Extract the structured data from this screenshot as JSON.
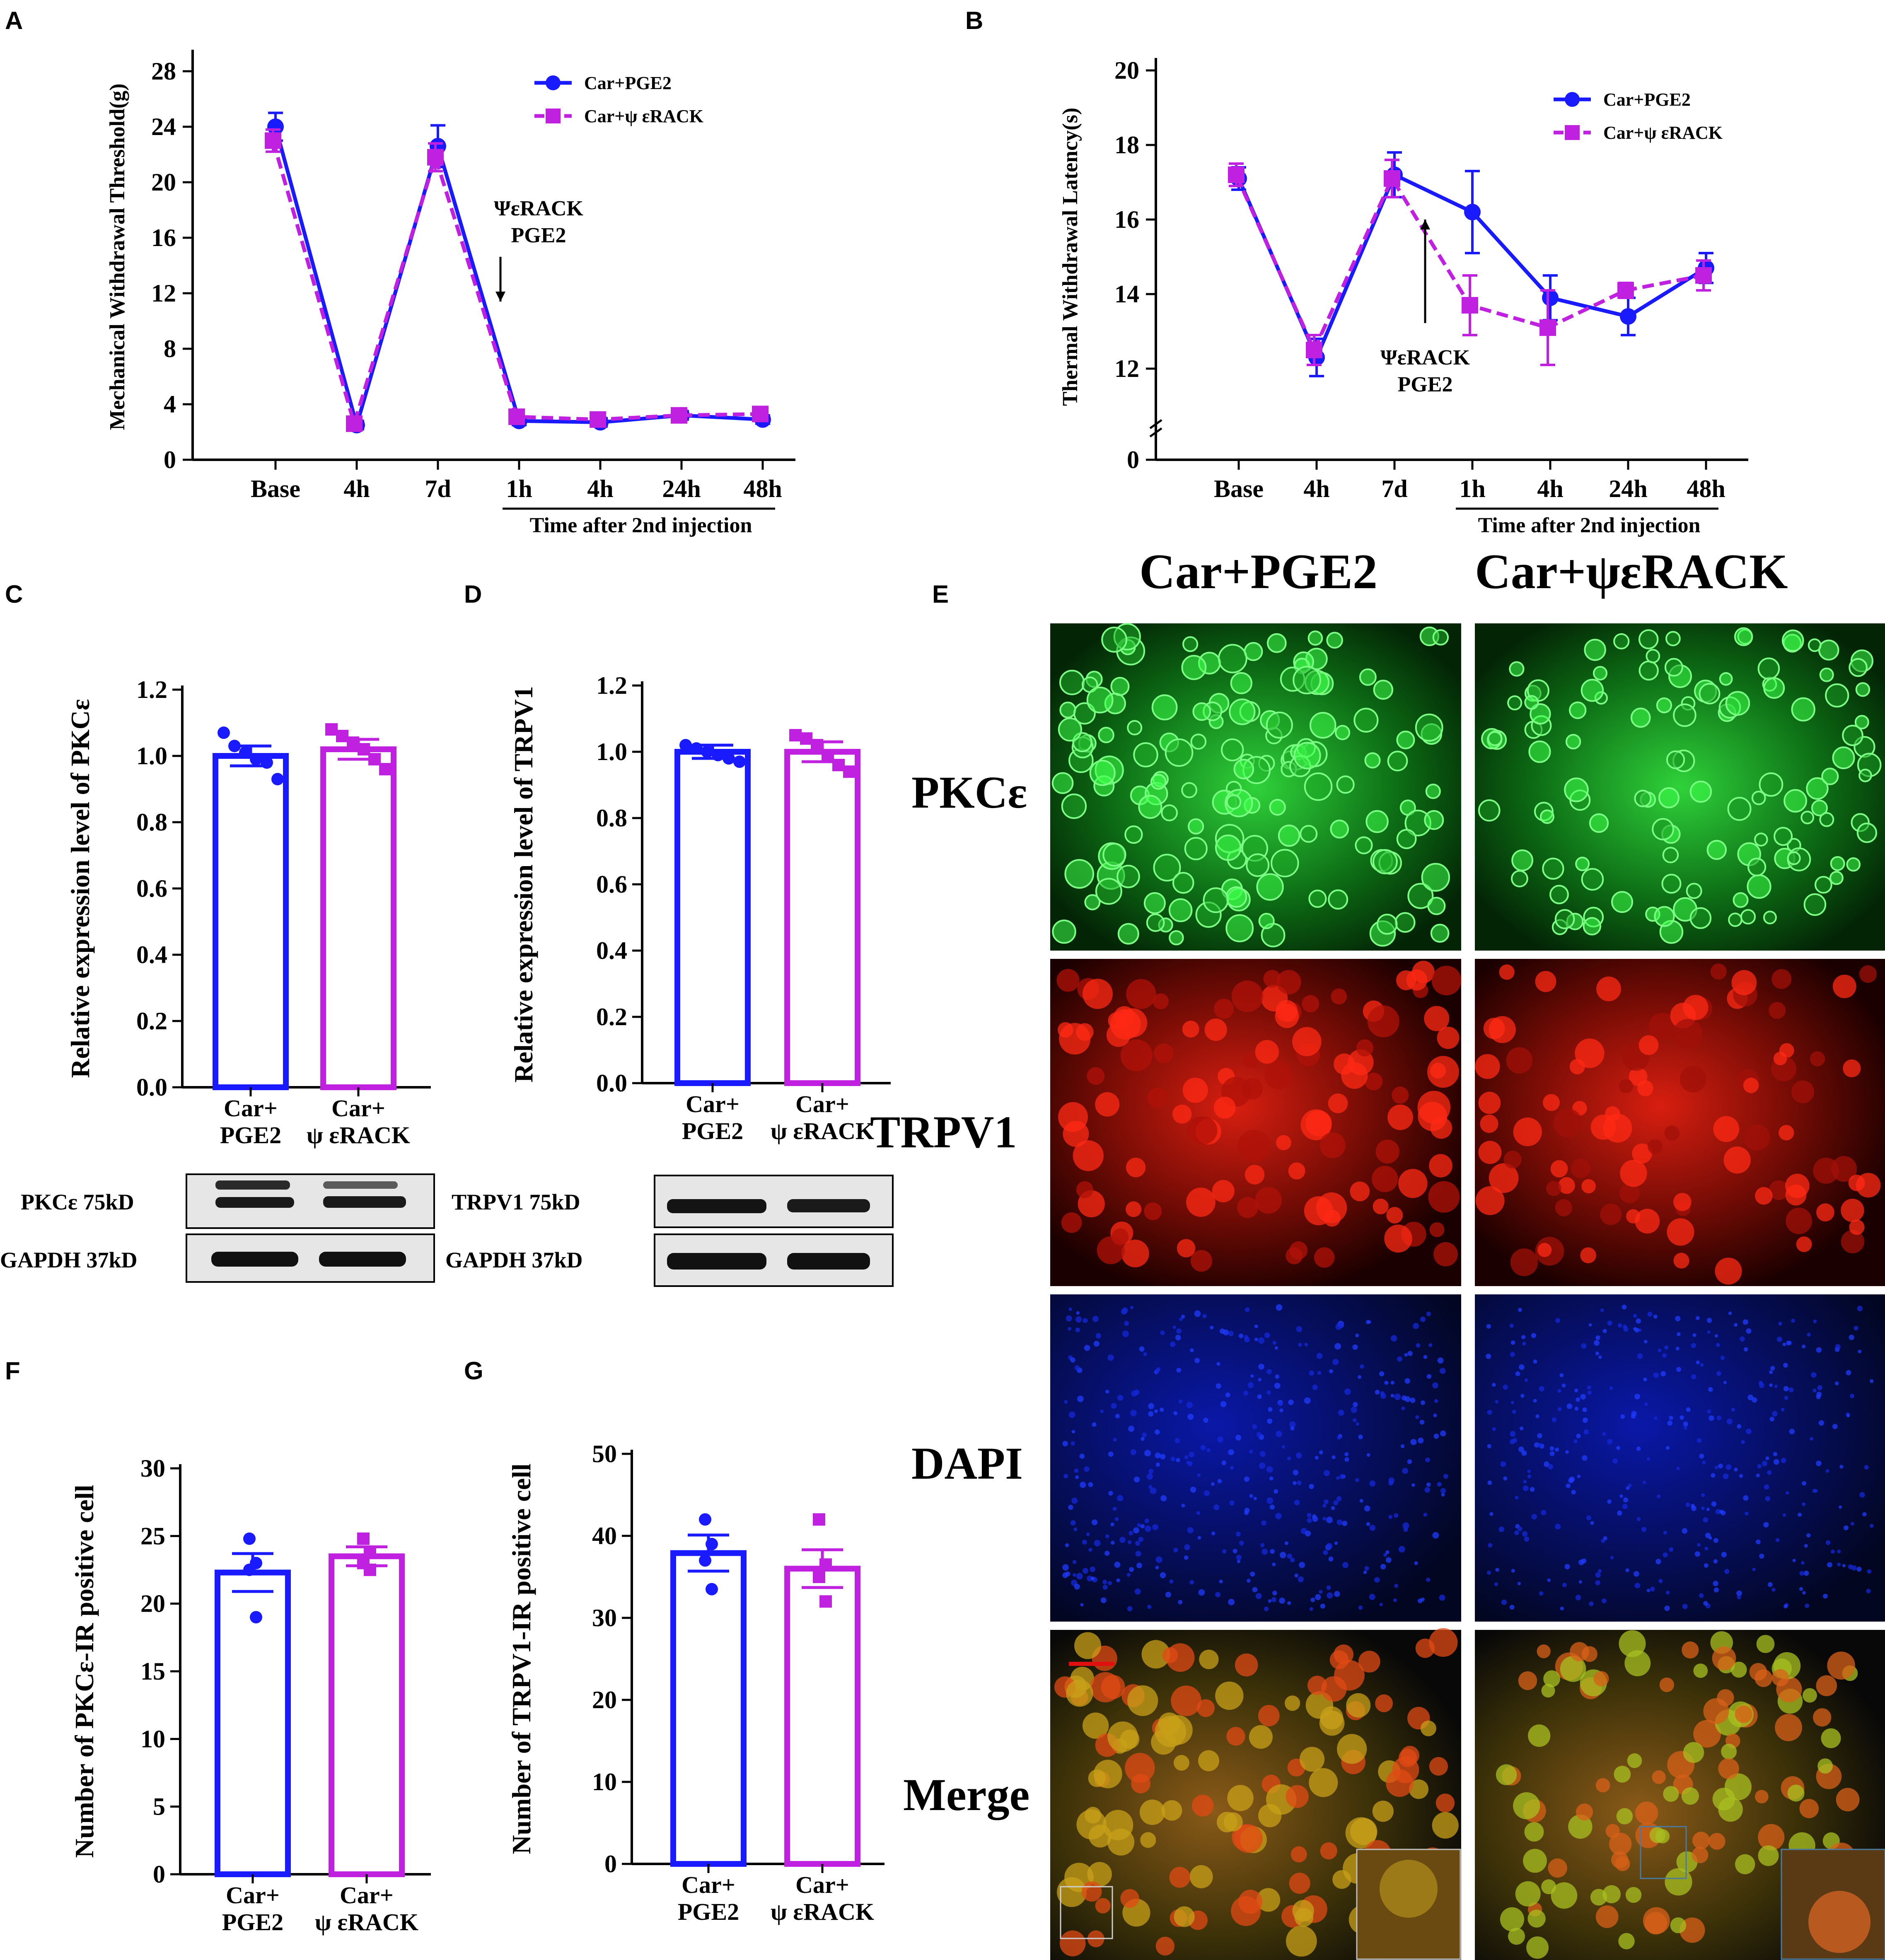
{
  "colors": {
    "blue": "#1a1aff",
    "purple": "#c020e0",
    "black": "#000000"
  },
  "panels": {
    "A": "A",
    "B": "B",
    "C": "C",
    "D": "D",
    "E": "E",
    "F": "F",
    "G": "G"
  },
  "chart_data": [
    {
      "id": "A",
      "type": "line",
      "ylabel": "Mechanical Withdrawal Threshold(g)",
      "categories": [
        "Base",
        "4h",
        "7d",
        "1h",
        "4h",
        "24h",
        "48h"
      ],
      "x_group_label": "Time after 2nd injection",
      "yticks": [
        0,
        4,
        8,
        12,
        16,
        20,
        24,
        28
      ],
      "ylim": [
        0,
        30
      ],
      "annotation": [
        "ΨεRACK",
        "PGE2"
      ],
      "legend_position": "top-right",
      "series": [
        {
          "name": "Car+PGE2",
          "values": [
            24.0,
            2.5,
            22.6,
            2.8,
            2.7,
            3.2,
            2.9
          ],
          "errors": [
            1.0,
            0.3,
            1.5,
            0.3,
            0.3,
            0.3,
            0.3
          ],
          "color": "#1a1aff",
          "marker": "circle",
          "dash": "solid"
        },
        {
          "name": "Car+ψ εRACK",
          "values": [
            23.0,
            2.6,
            21.8,
            3.1,
            2.9,
            3.2,
            3.3
          ],
          "errors": [
            0.8,
            0.3,
            1.0,
            0.3,
            0.3,
            0.3,
            0.3
          ],
          "color": "#c020e0",
          "marker": "square",
          "dash": "dashed"
        }
      ]
    },
    {
      "id": "B",
      "type": "line",
      "ylabel": "Thermal Withdrawal Latency(s)",
      "categories": [
        "Base",
        "4h",
        "7d",
        "1h",
        "4h",
        "24h",
        "48h"
      ],
      "x_group_label": "Time after 2nd injection",
      "yticks": [
        0,
        12,
        14,
        16,
        18,
        20
      ],
      "ylim": [
        11,
        20
      ],
      "axis_break": true,
      "annotation": [
        "ΨεRACK",
        "PGE2"
      ],
      "legend_position": "top-right",
      "series": [
        {
          "name": "Car+PGE2",
          "values": [
            17.1,
            12.3,
            17.2,
            16.2,
            13.9,
            13.4,
            14.7
          ],
          "errors": [
            0.3,
            0.5,
            0.6,
            1.1,
            0.6,
            0.5,
            0.4
          ],
          "color": "#1a1aff",
          "marker": "circle",
          "dash": "solid"
        },
        {
          "name": "Car+ψ εRACK",
          "values": [
            17.2,
            12.5,
            17.1,
            13.7,
            13.1,
            14.1,
            14.5
          ],
          "errors": [
            0.3,
            0.4,
            0.5,
            0.8,
            1.0,
            0.2,
            0.4
          ],
          "color": "#c020e0",
          "marker": "square",
          "dash": "dashed"
        }
      ]
    },
    {
      "id": "C",
      "type": "bar",
      "ylabel": "Relative expression level of PKCε",
      "yticks": [
        "0.0",
        "0.2",
        "0.4",
        "0.6",
        "0.8",
        "1.0",
        "1.2"
      ],
      "ylim": [
        0,
        1.2
      ],
      "categories": [
        [
          "Car+",
          "PGE2"
        ],
        [
          "Car+",
          "ψ εRACK"
        ]
      ],
      "values": [
        1.0,
        1.02
      ],
      "errors": [
        0.03,
        0.03
      ],
      "points": [
        [
          1.07,
          1.03,
          1.01,
          0.99,
          0.98,
          0.93
        ],
        [
          1.08,
          1.06,
          1.04,
          1.02,
          0.99,
          0.96
        ]
      ],
      "colors": [
        "#1a1aff",
        "#c020e0"
      ]
    },
    {
      "id": "D",
      "type": "bar",
      "ylabel": "Relative expression level of TRPV1",
      "yticks": [
        "0.0",
        "0.2",
        "0.4",
        "0.6",
        "0.8",
        "1.0",
        "1.2"
      ],
      "ylim": [
        0,
        1.2
      ],
      "categories": [
        [
          "Car+",
          "PGE2"
        ],
        [
          "Car+",
          "ψ εRACK"
        ]
      ],
      "values": [
        1.0,
        1.0
      ],
      "errors": [
        0.02,
        0.03
      ],
      "points": [
        [
          1.02,
          1.01,
          1.0,
          0.99,
          0.98,
          0.97
        ],
        [
          1.05,
          1.04,
          1.02,
          0.99,
          0.96,
          0.94
        ]
      ],
      "colors": [
        "#1a1aff",
        "#c020e0"
      ]
    },
    {
      "id": "F",
      "type": "bar",
      "ylabel": "Number of PKCε-IR positive cell",
      "yticks": [
        "0",
        "5",
        "10",
        "15",
        "20",
        "25",
        "30"
      ],
      "ylim": [
        0,
        30
      ],
      "categories": [
        [
          "Car+",
          "PGE2"
        ],
        [
          "Car+",
          "ψ εRACK"
        ]
      ],
      "values": [
        22.3,
        23.5
      ],
      "errors": [
        1.4,
        0.7
      ],
      "points": [
        [
          24.8,
          23.0,
          22.5,
          19.0
        ],
        [
          24.8,
          23.8,
          23.0,
          22.5
        ]
      ],
      "colors": [
        "#1a1aff",
        "#c020e0"
      ]
    },
    {
      "id": "G",
      "type": "bar",
      "ylabel": "Number of TRPV1-IR positive cell",
      "yticks": [
        "0",
        "10",
        "20",
        "30",
        "40",
        "50"
      ],
      "ylim": [
        0,
        50
      ],
      "categories": [
        [
          "Car+",
          "PGE2"
        ],
        [
          "Car+",
          "ψ εRACK"
        ]
      ],
      "values": [
        37.9,
        36.0
      ],
      "errors": [
        2.2,
        2.3
      ],
      "points": [
        [
          42.0,
          39.0,
          37.0,
          33.5
        ],
        [
          42.0,
          36.5,
          35.0,
          32.0
        ]
      ],
      "colors": [
        "#1a1aff",
        "#c020e0"
      ]
    }
  ],
  "blots": {
    "C": {
      "top": "PKCε 75kD",
      "bottom": "GAPDH 37kD"
    },
    "D": {
      "top": "TRPV1 75kD",
      "bottom": "GAPDH 37kD"
    }
  },
  "microscopy": {
    "columns": [
      "Car+PGE2",
      "Car+ψεRACK"
    ],
    "rows": [
      "PKCε",
      "TRPV1",
      "DAPI",
      "Merge"
    ]
  }
}
